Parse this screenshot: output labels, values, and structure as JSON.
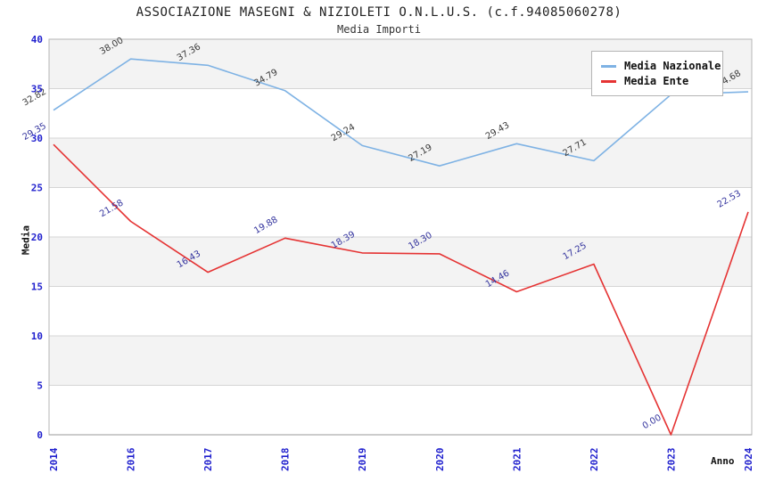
{
  "chart_data": {
    "type": "line",
    "title": "ASSOCIAZIONE MASEGNI & NIZIOLETI O.N.L.U.S. (c.f.94085060278)",
    "subtitle": "Media Importi",
    "xlabel": "Anno",
    "ylabel": "Media",
    "categories": [
      "2014",
      "2016",
      "2017",
      "2018",
      "2019",
      "2020",
      "2021",
      "2022",
      "2023",
      "2024"
    ],
    "y_ticks": [
      0,
      5,
      10,
      15,
      20,
      25,
      30,
      35,
      40
    ],
    "ylim": [
      0,
      40
    ],
    "grid": true,
    "legend_position": "top-right",
    "series": [
      {
        "name": "Media Nazionale",
        "color": "#7EB2E4",
        "label_color": "#3A3A3A",
        "values": [
          32.82,
          38.0,
          37.36,
          34.79,
          29.24,
          27.19,
          29.43,
          27.71,
          34.4,
          34.68
        ],
        "point_labels": [
          "32.82",
          "38.00",
          "37.36",
          "34.79",
          "29.24",
          "27.19",
          "29.43",
          "27.71",
          "",
          "34.68"
        ]
      },
      {
        "name": "Media Ente",
        "color": "#E53333",
        "label_color": "#34349E",
        "values": [
          29.35,
          21.58,
          16.43,
          19.88,
          18.39,
          18.3,
          14.46,
          17.25,
          0.0,
          22.53
        ],
        "point_labels": [
          "29.35",
          "21.58",
          "16.43",
          "19.88",
          "18.39",
          "18.30",
          "14.46",
          "17.25",
          "0.00",
          "22.53"
        ]
      }
    ],
    "band_colors": [
      "#F3F3F3",
      "#FFFFFF"
    ],
    "grid_color": "#D5D5D5",
    "axis_color": "#9A9A9A",
    "border_color": "#B6B6B6",
    "tick_label_color": "#2121CE"
  }
}
